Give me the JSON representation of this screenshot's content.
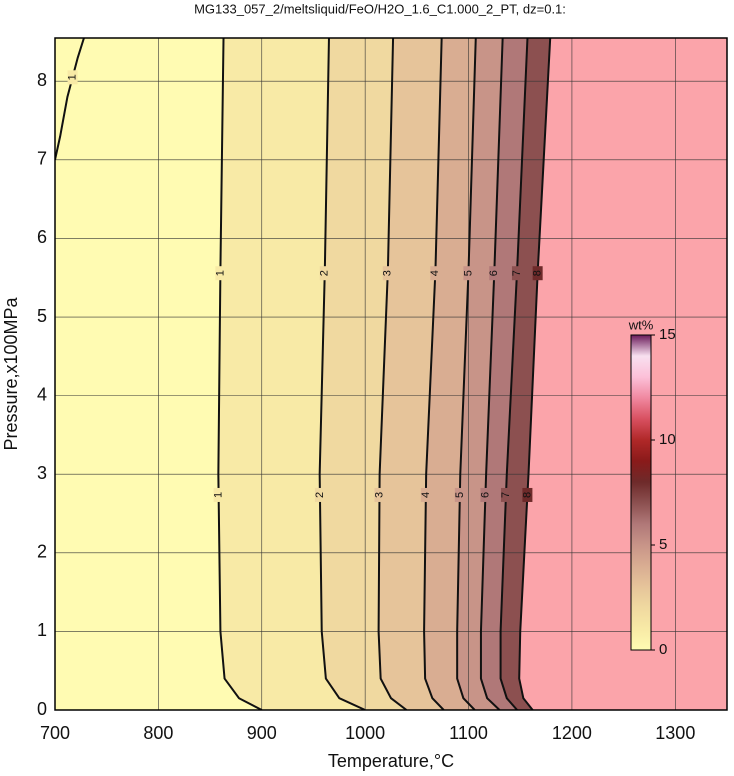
{
  "chart_data": {
    "type": "contour",
    "title": "MG133_057_2/meltsliquid/FeO/H2O_1.6_C1.000_2_PT, dz=0.1:",
    "xlabel": "Temperature,°C",
    "ylabel": "Pressure,x100MPa",
    "xlim": [
      700,
      1350
    ],
    "ylim": [
      0,
      8.55
    ],
    "xticks": [
      700,
      800,
      900,
      1000,
      1100,
      1200,
      1300
    ],
    "yticks": [
      0,
      1,
      2,
      3,
      4,
      5,
      6,
      7,
      8
    ],
    "grid": true,
    "line_color": "#111111",
    "above_color": "#fba4aa",
    "contours": [
      {
        "level": 1,
        "x": [
          900,
          878,
          864,
          860,
          858,
          860,
          863,
          null,
          700,
          705,
          712,
          722,
          728
        ],
        "y": [
          0,
          0.15,
          0.4,
          1,
          3,
          5.6,
          8.55,
          null,
          7.0,
          7.3,
          7.8,
          8.3,
          8.55
        ]
      },
      {
        "level": 2,
        "x": [
          1000,
          975,
          962,
          958,
          956,
          961,
          965
        ],
        "y": [
          0,
          0.15,
          0.4,
          1,
          3,
          5.6,
          8.55
        ]
      },
      {
        "level": 3,
        "x": [
          1040,
          1025,
          1015,
          1013,
          1014,
          1022,
          1027
        ],
        "y": [
          0,
          0.15,
          0.4,
          1,
          3,
          5.6,
          8.55
        ]
      },
      {
        "level": 4,
        "x": [
          1076,
          1065,
          1058,
          1057,
          1059,
          1068,
          1074
        ],
        "y": [
          0,
          0.15,
          0.4,
          1,
          3,
          5.6,
          8.55
        ]
      },
      {
        "level": 5,
        "x": [
          1106,
          1095,
          1089,
          1089,
          1092,
          1100,
          1107
        ],
        "y": [
          0,
          0.15,
          0.4,
          1,
          3,
          5.6,
          8.55
        ]
      },
      {
        "level": 6,
        "x": [
          1130,
          1118,
          1112,
          1112,
          1117,
          1125,
          1133
        ],
        "y": [
          0,
          0.15,
          0.4,
          1,
          3,
          5.6,
          8.55
        ]
      },
      {
        "level": 7,
        "x": [
          1147,
          1137,
          1131,
          1131,
          1137,
          1147,
          1157
        ],
        "y": [
          0,
          0.15,
          0.4,
          1,
          3,
          5.6,
          8.55
        ]
      },
      {
        "level": 8,
        "x": [
          1162,
          1153,
          1149,
          1150,
          1158,
          1167,
          1179
        ],
        "y": [
          0,
          0.15,
          0.4,
          1,
          3,
          5.6,
          8.55
        ]
      }
    ],
    "colorbar": {
      "label": "wt%",
      "lim": [
        0,
        15
      ],
      "ticks": [
        0,
        5,
        10,
        15
      ],
      "colormap": [
        "#fffbb2",
        "#f8eaa6",
        "#f0d9a0",
        "#e6c49a",
        "#d9ad92",
        "#c89488",
        "#b07878",
        "#8c5050",
        "#6e2a2a",
        "#8a1a1a",
        "#b02828",
        "#d85060",
        "#f088a0",
        "#fcc0d8",
        "#f8e0f0",
        "#6a1a5a"
      ]
    }
  }
}
